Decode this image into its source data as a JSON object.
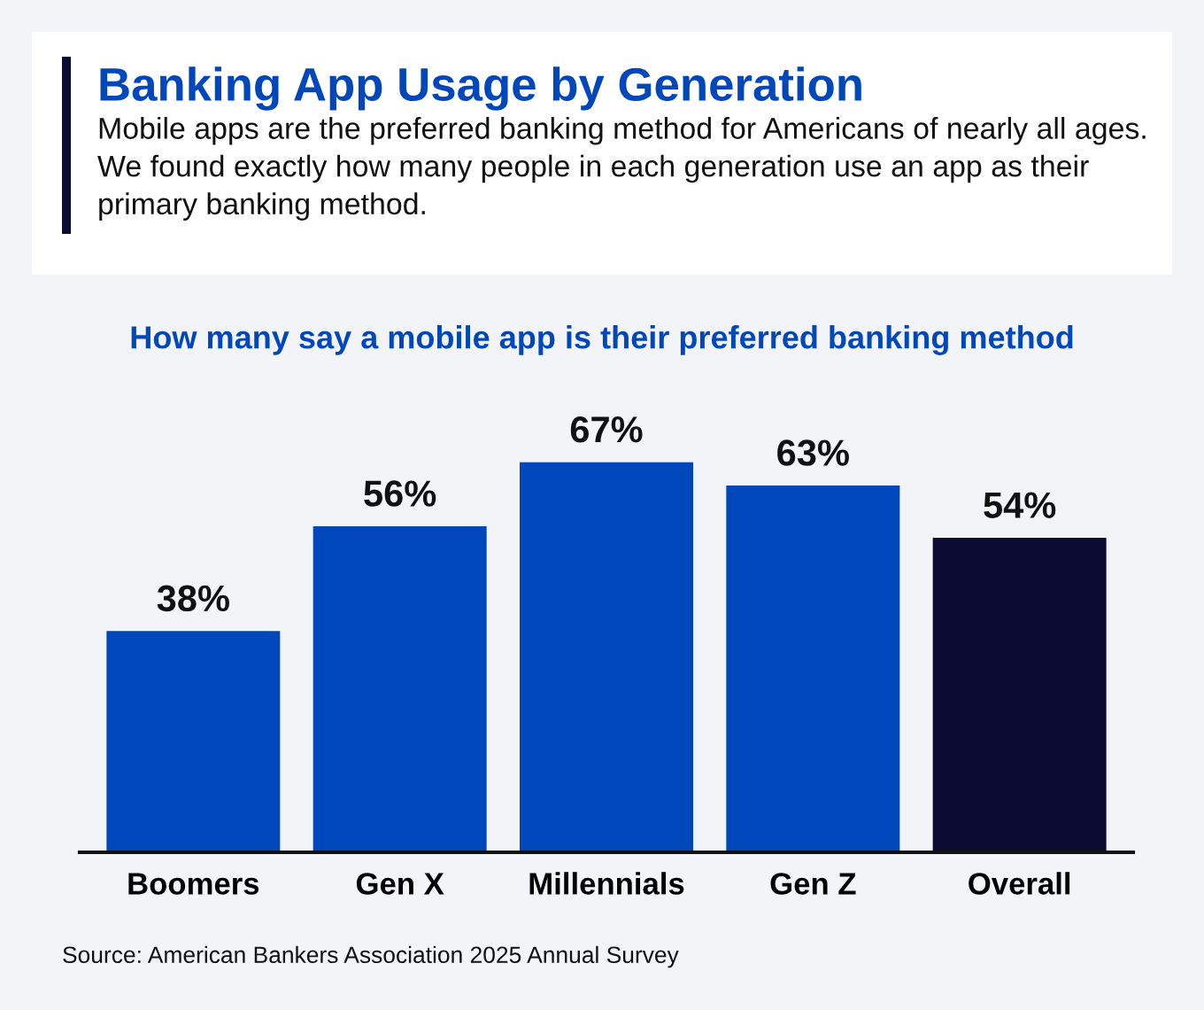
{
  "chart_data": {
    "type": "bar",
    "title": "Banking App Usage by Generation",
    "subtitle": "Mobile apps are the preferred banking method for Americans of nearly all ages.\nWe found exactly how many people in each generation use an app as their\nprimary banking method.",
    "annotations": [
      "How many say a mobile app is their preferred banking method",
      "Source: American Bankers Association 2025 Annual Survey"
    ],
    "categories": [
      "Boomers",
      "Gen X",
      "Millennials",
      "Gen Z",
      "Overall"
    ],
    "values": [
      38,
      56,
      67,
      63,
      54
    ],
    "value_labels": [
      "38%",
      "56%",
      "67%",
      "63%",
      "54%"
    ],
    "colors": [
      "#0047bb",
      "#0047bb",
      "#0047bb",
      "#0047bb",
      "#0b0b33"
    ],
    "grid": false,
    "legend": false
  }
}
